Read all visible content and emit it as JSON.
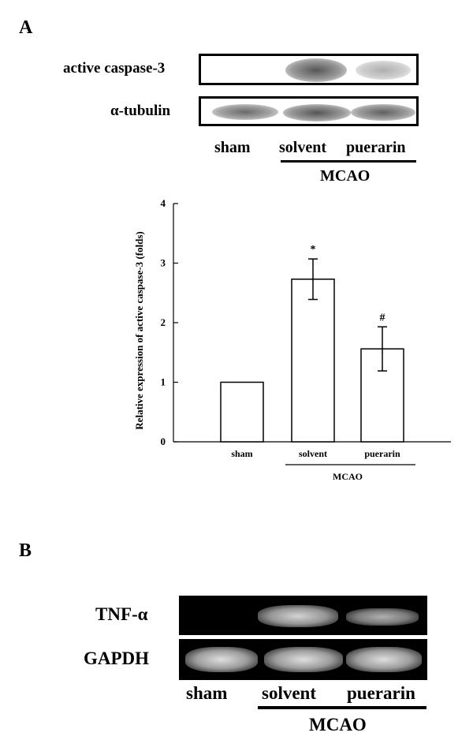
{
  "panel_a": {
    "letter": "A",
    "blot_rows": [
      {
        "label": "active caspase-3",
        "intensities": [
          0.0,
          0.85,
          0.4
        ]
      },
      {
        "label": "α-tubulin",
        "intensities": [
          0.75,
          0.85,
          0.8
        ]
      }
    ],
    "lanes": [
      "sham",
      "solvent",
      "puerarin"
    ],
    "group_label": "MCAO"
  },
  "chart_data": {
    "type": "bar",
    "categories": [
      "sham",
      "solvent",
      "puerarin"
    ],
    "values": [
      1.0,
      2.73,
      1.56
    ],
    "errors": [
      0.0,
      0.34,
      0.37
    ],
    "significance": [
      "",
      "*",
      "#"
    ],
    "ylabel": "Relative expression of active caspase-3 (folds)",
    "ylim": [
      0,
      4
    ],
    "yticks": [
      "0",
      "1",
      "2",
      "3",
      "4"
    ],
    "group_label": "MCAO",
    "grid": false
  },
  "panel_b": {
    "letter": "B",
    "gel_rows": [
      {
        "label": "TNF-α",
        "intensities": [
          0.0,
          0.9,
          0.75
        ]
      },
      {
        "label": "GAPDH",
        "intensities": [
          0.95,
          0.95,
          0.95
        ]
      }
    ],
    "lanes": [
      "sham",
      "solvent",
      "puerarin"
    ],
    "group_label": "MCAO"
  }
}
